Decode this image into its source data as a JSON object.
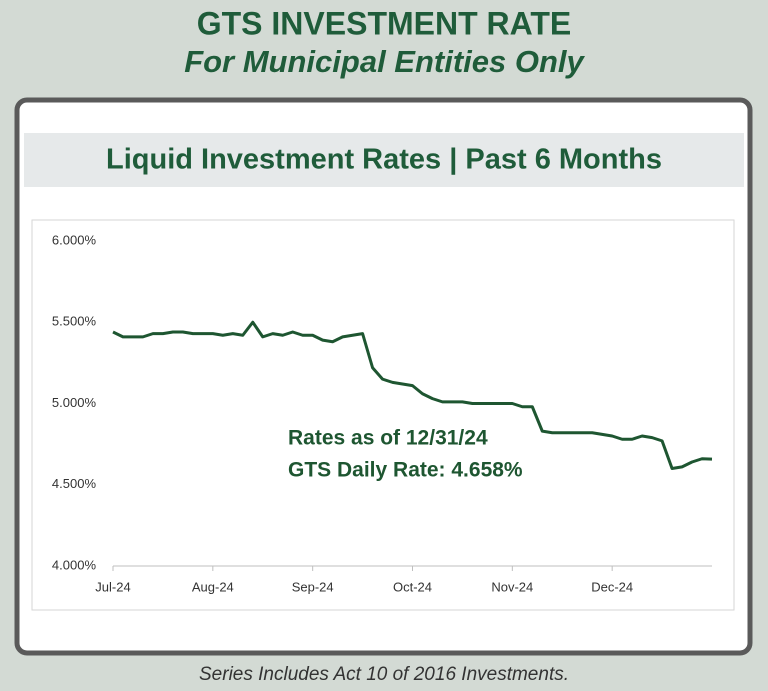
{
  "chart_data": {
    "type": "line",
    "title": "GTS INVESTMENT RATE",
    "subtitle": "For Municipal Entities Only",
    "panel_title": "Liquid Investment Rates | Past 6 Months",
    "footer": "Series Includes Act 10 of 2016 Investments.",
    "annotations": [
      "Rates as of 12/31/24",
      "GTS Daily Rate: 4.658%"
    ],
    "categories": [
      "Jul-24",
      null,
      null,
      null,
      null,
      null,
      null,
      null,
      null,
      null,
      "Aug-24",
      null,
      null,
      null,
      null,
      null,
      null,
      null,
      null,
      null,
      "Sep-24",
      null,
      null,
      null,
      null,
      null,
      null,
      null,
      null,
      null,
      "Oct-24",
      null,
      null,
      null,
      null,
      null,
      null,
      null,
      null,
      null,
      "Nov-24",
      null,
      null,
      null,
      null,
      null,
      null,
      null,
      null,
      null,
      "Dec-24",
      null,
      null,
      null,
      null,
      null,
      null,
      null,
      null,
      null,
      null
    ],
    "series": [
      {
        "name": "GTS Daily Rate",
        "color": "#1e5631",
        "values": [
          5.44,
          5.41,
          5.41,
          5.41,
          5.43,
          5.43,
          5.44,
          5.44,
          5.43,
          5.43,
          5.43,
          5.42,
          5.43,
          5.42,
          5.5,
          5.41,
          5.43,
          5.42,
          5.44,
          5.42,
          5.42,
          5.39,
          5.38,
          5.41,
          5.42,
          5.43,
          5.22,
          5.15,
          5.13,
          5.12,
          5.11,
          5.06,
          5.03,
          5.01,
          5.01,
          5.01,
          5.0,
          5.0,
          5.0,
          5.0,
          5.0,
          4.98,
          4.98,
          4.83,
          4.82,
          4.82,
          4.82,
          4.82,
          4.82,
          4.81,
          4.8,
          4.78,
          4.78,
          4.8,
          4.79,
          4.77,
          4.6,
          4.61,
          4.64,
          4.66,
          4.658
        ]
      }
    ],
    "ylim": [
      4,
      6
    ],
    "yticks": [
      {
        "value": 4,
        "label": "4.000%"
      },
      {
        "value": 4.5,
        "label": "4.500%"
      },
      {
        "value": 5,
        "label": "5.000%"
      },
      {
        "value": 5.5,
        "label": "5.500%"
      },
      {
        "value": 6,
        "label": "6.000%"
      }
    ],
    "grid": false
  }
}
